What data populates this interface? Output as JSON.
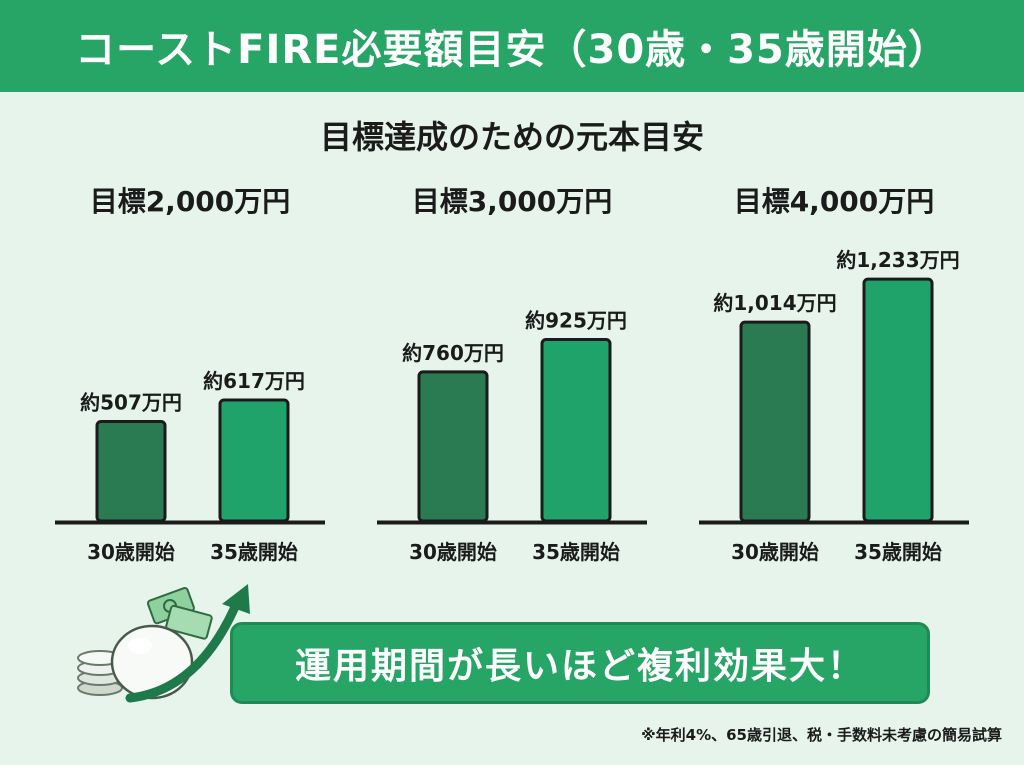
{
  "header": {
    "title": "コーストFIRE必要額目安（30歳・35歳開始）"
  },
  "subtitle": "目標達成のための元本目安",
  "chart_data": [
    {
      "type": "bar",
      "title": "目標2,000万円",
      "categories": [
        "30歳開始",
        "35歳開始"
      ],
      "values": [
        507,
        617
      ],
      "value_labels": [
        "約507万円",
        "約617万円"
      ],
      "unit": "万円",
      "ylim": [
        0,
        1300
      ]
    },
    {
      "type": "bar",
      "title": "目標3,000万円",
      "categories": [
        "30歳開始",
        "35歳開始"
      ],
      "values": [
        760,
        925
      ],
      "value_labels": [
        "約760万円",
        "約925万円"
      ],
      "unit": "万円",
      "ylim": [
        0,
        1300
      ]
    },
    {
      "type": "bar",
      "title": "目標4,000万円",
      "categories": [
        "30歳開始",
        "35歳開始"
      ],
      "values": [
        1014,
        1233
      ],
      "value_labels": [
        "約1,014万円",
        "約1,233万円"
      ],
      "unit": "万円",
      "ylim": [
        0,
        1300
      ]
    }
  ],
  "colors": {
    "bar_30": "#2a7a52",
    "bar_35": "#1fa36a",
    "header": "#27a566",
    "background": "#e6f4ec"
  },
  "banner": {
    "text": "運用期間が長いほど複利効果大！"
  },
  "decoration": {
    "icons": [
      "piggy-bank-icon",
      "banknote-icon",
      "coin-stack-icon",
      "growth-arrow-icon"
    ]
  },
  "footnote": "※年利4%、65歳引退、税・手数料未考慮の簡易試算"
}
